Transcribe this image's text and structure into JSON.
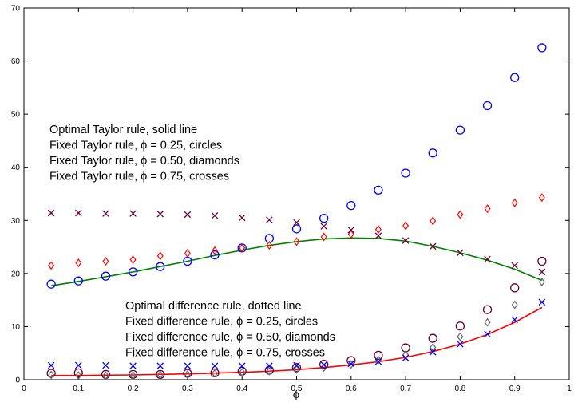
{
  "chart_data": {
    "type": "scatter",
    "title": "",
    "xlabel": "ϕ",
    "ylabel": "",
    "xlim": [
      0,
      1
    ],
    "ylim": [
      0,
      70
    ],
    "xticks": [
      "0",
      "0.1",
      "0.2",
      "0.3",
      "0.4",
      "0.5",
      "0.6",
      "0.7",
      "0.8",
      "0.9",
      "1"
    ],
    "yticks": [
      "0",
      "10",
      "20",
      "30",
      "40",
      "50",
      "60",
      "70"
    ],
    "grid": false,
    "x": [
      0.05,
      0.1,
      0.15,
      0.2,
      0.25,
      0.3,
      0.35,
      0.4,
      0.45,
      0.5,
      0.55,
      0.6,
      0.65,
      0.7,
      0.75,
      0.8,
      0.85,
      0.9,
      0.95
    ],
    "series": [
      {
        "style": "line",
        "color": "#008000",
        "values": [
          17.7,
          18.5,
          19.4,
          20.3,
          21.3,
          22.3,
          23.4,
          24.4,
          25.3,
          26.0,
          26.5,
          26.7,
          26.6,
          26.1,
          25.1,
          23.9,
          22.5,
          20.8,
          18.7
        ]
      },
      {
        "style": "circle",
        "color": "#0000ff",
        "values": [
          18.0,
          18.6,
          19.5,
          20.3,
          21.3,
          22.3,
          23.5,
          24.8,
          26.6,
          28.4,
          30.4,
          32.8,
          35.7,
          38.9,
          42.7,
          47.0,
          51.6,
          56.9,
          62.5
        ]
      },
      {
        "style": "diamond",
        "color": "#ff0000",
        "values": [
          21.5,
          22.0,
          22.3,
          22.6,
          23.3,
          23.8,
          24.3,
          24.8,
          25.3,
          26.0,
          26.9,
          27.4,
          28.3,
          29.0,
          29.9,
          31.1,
          32.2,
          33.3,
          34.3
        ]
      },
      {
        "style": "cross",
        "color": "#660033",
        "values": [
          31.4,
          31.4,
          31.3,
          31.3,
          31.2,
          31.1,
          30.9,
          30.5,
          30.1,
          29.6,
          28.9,
          28.2,
          27.1,
          26.2,
          25.1,
          23.9,
          22.7,
          21.5,
          20.3
        ]
      },
      {
        "style": "line",
        "color": "#ff0000",
        "values": [
          0.8,
          0.8,
          0.85,
          0.9,
          1.0,
          1.1,
          1.25,
          1.4,
          1.6,
          1.9,
          2.3,
          2.8,
          3.4,
          4.2,
          5.3,
          6.7,
          8.5,
          10.8,
          13.6
        ]
      },
      {
        "style": "circle",
        "color": "#660033",
        "values": [
          1.2,
          1.3,
          1.0,
          1.0,
          1.0,
          1.2,
          1.3,
          1.6,
          1.8,
          2.3,
          2.9,
          3.6,
          4.6,
          6.0,
          7.8,
          10.1,
          13.2,
          17.3,
          22.3
        ]
      },
      {
        "style": "diamond",
        "color": "#666666",
        "values": [
          0.9,
          0.8,
          0.8,
          0.8,
          0.9,
          1.0,
          1.2,
          1.4,
          1.6,
          1.9,
          2.3,
          2.9,
          3.7,
          4.7,
          6.1,
          8.1,
          10.8,
          14.1,
          18.4
        ]
      },
      {
        "style": "cross",
        "color": "#0000ff",
        "values": [
          2.7,
          2.7,
          2.7,
          2.6,
          2.6,
          2.6,
          2.6,
          2.6,
          2.6,
          2.7,
          2.8,
          3.0,
          3.4,
          4.1,
          5.2,
          6.7,
          8.6,
          11.3,
          14.6
        ]
      }
    ],
    "annotations": {
      "taylor": [
        {
          "text": "Optimal Taylor rule, solid line"
        },
        {
          "text": "Fixed Taylor rule, ϕ = 0.25, circles"
        },
        {
          "text": "Fixed Taylor rule, ϕ = 0.50, diamonds"
        },
        {
          "text": "Fixed Taylor rule, ϕ = 0.75, crosses"
        }
      ],
      "difference": [
        {
          "text": "Optimal difference rule, dotted line"
        },
        {
          "text": "Fixed difference rule, ϕ = 0.25, circles"
        },
        {
          "text": "Fixed difference rule, ϕ = 0.50, diamonds"
        },
        {
          "text": "Fixed difference rule, ϕ = 0.75, crosses"
        }
      ]
    }
  }
}
